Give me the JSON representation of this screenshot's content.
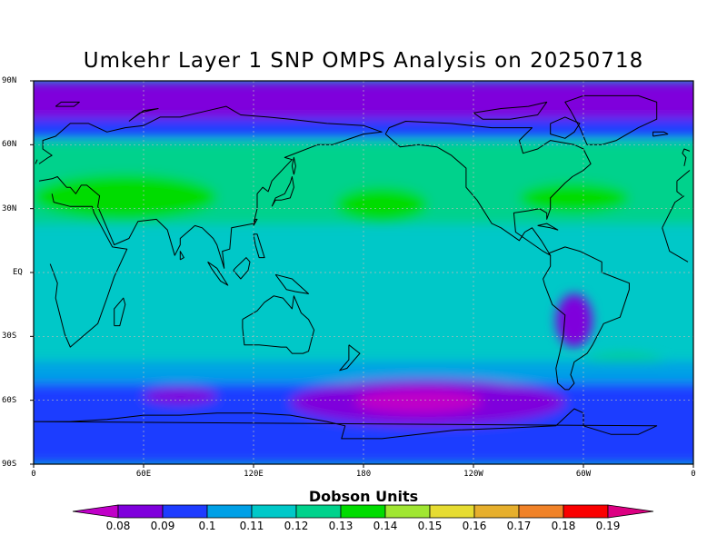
{
  "title": "Umkehr Layer 1 SNP OMPS Analysis on 20250718",
  "y_axis_labels": [
    "90N",
    "60N",
    "30N",
    "EQ",
    "30S",
    "60S",
    "90S"
  ],
  "x_axis_labels": [
    "0",
    "60E",
    "120E",
    "180",
    "120W",
    "60W",
    "0"
  ],
  "colorbar": {
    "title": "Dobson Units",
    "labels": [
      "0.08",
      "0.09",
      "0.1",
      "0.11",
      "0.12",
      "0.13",
      "0.14",
      "0.15",
      "0.16",
      "0.17",
      "0.18",
      "0.19"
    ],
    "colors": [
      "#c000c8",
      "#7f00dc",
      "#1e3cff",
      "#00a0e6",
      "#00c8c8",
      "#00d28c",
      "#00dc00",
      "#a0e632",
      "#e6dc32",
      "#e6af2d",
      "#f08228",
      "#fa0000",
      "#dc0082"
    ]
  },
  "chart_data": {
    "type": "heatmap",
    "title": "Umkehr Layer 1 SNP OMPS Analysis on 20250718",
    "xlabel": "",
    "ylabel": "",
    "x_ticks": [
      "0",
      "60E",
      "120E",
      "180",
      "120W",
      "60W",
      "0"
    ],
    "y_ticks": [
      "90N",
      "60N",
      "30N",
      "EQ",
      "30S",
      "60S",
      "90S"
    ],
    "xlim_deg_east": [
      0,
      360
    ],
    "ylim_deg": [
      -90,
      90
    ],
    "grid": true,
    "units": "Dobson Units",
    "color_levels": [
      0.08,
      0.09,
      0.1,
      0.11,
      0.12,
      0.13,
      0.14,
      0.15,
      0.16,
      0.17,
      0.18,
      0.19
    ],
    "background_value": 0.115,
    "features": [
      {
        "region": "north polar cap",
        "lon": [
          0,
          360
        ],
        "lat": [
          72,
          90
        ],
        "value": 0.085
      },
      {
        "region": "high northern latitudes",
        "lon": [
          0,
          360
        ],
        "lat": [
          63,
          72
        ],
        "value": 0.095
      },
      {
        "region": "northern mid-latitude band",
        "lon": [
          0,
          360
        ],
        "lat": [
          23,
          62
        ],
        "value": 0.125
      },
      {
        "region": "Eurasia maximum",
        "lon": [
          0,
          100
        ],
        "lat": [
          25,
          46
        ],
        "value": 0.135
      },
      {
        "region": "North Pacific maximum",
        "lon": [
          165,
          215
        ],
        "lat": [
          24,
          40
        ],
        "value": 0.135
      },
      {
        "region": "North Atlantic maximum",
        "lon": [
          265,
          325
        ],
        "lat": [
          28,
          42
        ],
        "value": 0.135
      },
      {
        "region": "South America minimum",
        "lon": [
          285,
          305
        ],
        "lat": [
          -35,
          -10
        ],
        "value": 0.085
      },
      {
        "region": "South Atlantic maximum",
        "lon": [
          300,
          345
        ],
        "lat": [
          -48,
          -38
        ],
        "value": 0.125
      },
      {
        "region": "southern storm track",
        "lon": [
          0,
          360
        ],
        "lat": [
          -52,
          -42
        ],
        "value": 0.105
      },
      {
        "region": "southern high latitudes",
        "lon": [
          0,
          360
        ],
        "lat": [
          -90,
          -52
        ],
        "value": 0.095
      },
      {
        "region": "Pacific sector minimum",
        "lon": [
          140,
          290
        ],
        "lat": [
          -72,
          -50
        ],
        "value": 0.085
      },
      {
        "region": "South Pacific core minimum",
        "lon": [
          175,
          245
        ],
        "lat": [
          -66,
          -55
        ],
        "value": 0.075
      },
      {
        "region": "Indian Ocean sector minimum",
        "lon": [
          60,
          100
        ],
        "lat": [
          -62,
          -54
        ],
        "value": 0.085
      }
    ]
  }
}
